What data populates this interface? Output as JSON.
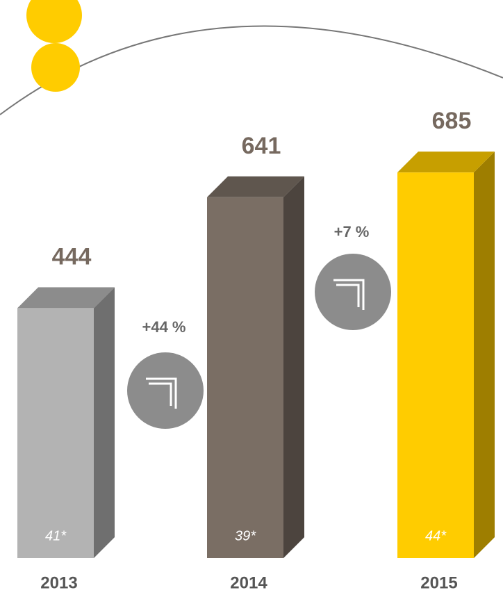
{
  "chart_data": {
    "type": "bar",
    "categories": [
      "2013",
      "2014",
      "2015"
    ],
    "values": [
      444,
      641,
      685
    ],
    "colors": [
      "#b3b3b3",
      "#7a6e64",
      "#ffcc00"
    ],
    "inner_labels": [
      "41*",
      "39*",
      "44*"
    ],
    "annotations": [
      "+44 %",
      "+7 %"
    ]
  }
}
